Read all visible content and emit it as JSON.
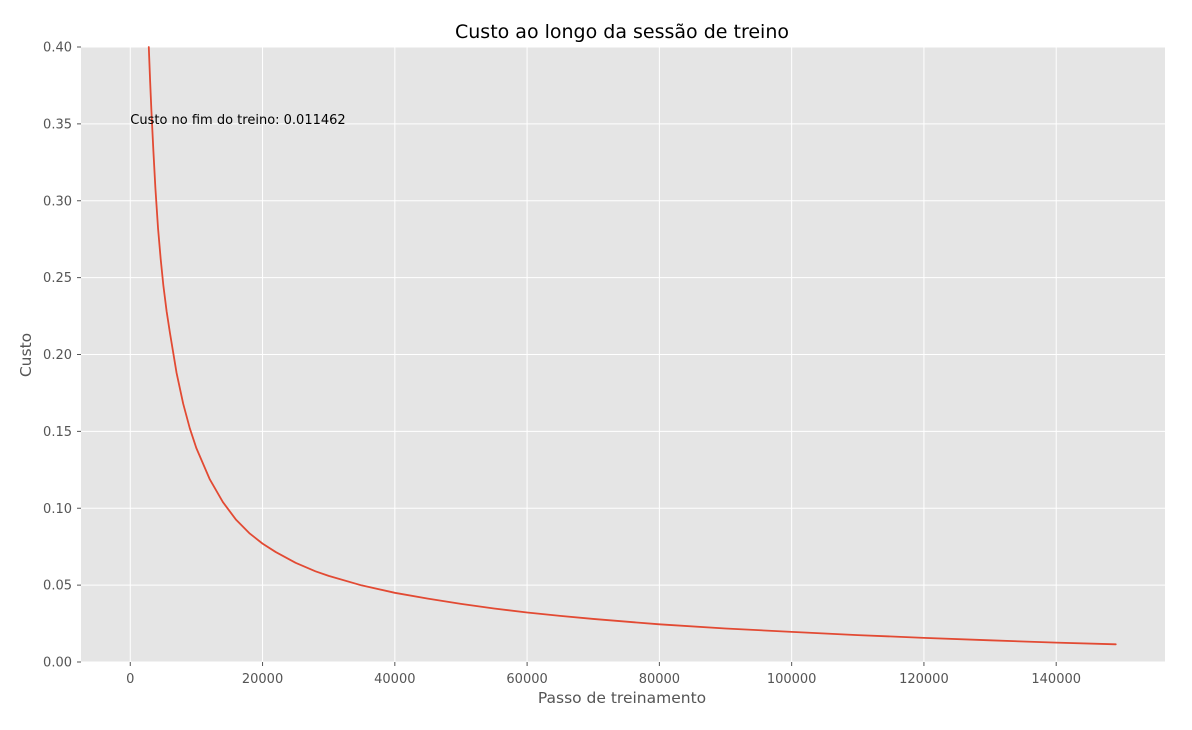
{
  "chart_data": {
    "type": "line",
    "title": "Custo ao longo da sessão de treino",
    "xlabel": "Passo de treinamento",
    "ylabel": "Custo",
    "xlim": [
      -7450,
      156450
    ],
    "ylim": [
      0,
      0.4
    ],
    "x_ticks": [
      0,
      20000,
      40000,
      60000,
      80000,
      100000,
      120000,
      140000
    ],
    "x_tick_labels": [
      "0",
      "20000",
      "40000",
      "60000",
      "80000",
      "100000",
      "120000",
      "140000"
    ],
    "y_ticks": [
      0,
      0.05,
      0.1,
      0.15,
      0.2,
      0.25,
      0.3,
      0.35,
      0.4
    ],
    "y_tick_labels": [
      "0.00",
      "0.05",
      "0.10",
      "0.15",
      "0.20",
      "0.25",
      "0.30",
      "0.35",
      "0.40"
    ],
    "grid": true,
    "annotation": {
      "text": "Custo no fim do treino: 0.011462",
      "x": 0,
      "y": 0.35
    },
    "series": [
      {
        "color": "#E24A33",
        "x": [
          2800,
          3000,
          3200,
          3500,
          3800,
          4200,
          4600,
          5000,
          5500,
          6000,
          7000,
          8000,
          9000,
          10000,
          12000,
          14000,
          16000,
          18000,
          20000,
          22000,
          25000,
          28000,
          30000,
          35000,
          40000,
          45000,
          50000,
          55000,
          60000,
          65000,
          70000,
          80000,
          90000,
          100000,
          110000,
          120000,
          130000,
          140000,
          149000
        ],
        "values": [
          0.4,
          0.378,
          0.358,
          0.332,
          0.308,
          0.282,
          0.262,
          0.245,
          0.228,
          0.214,
          0.188,
          0.168,
          0.152,
          0.139,
          0.119,
          0.104,
          0.0925,
          0.0838,
          0.077,
          0.0715,
          0.0645,
          0.059,
          0.056,
          0.0498,
          0.045,
          0.0412,
          0.0378,
          0.0348,
          0.0322,
          0.03,
          0.028,
          0.0245,
          0.0218,
          0.0196,
          0.0175,
          0.0157,
          0.0141,
          0.0126,
          0.0115
        ]
      }
    ]
  }
}
